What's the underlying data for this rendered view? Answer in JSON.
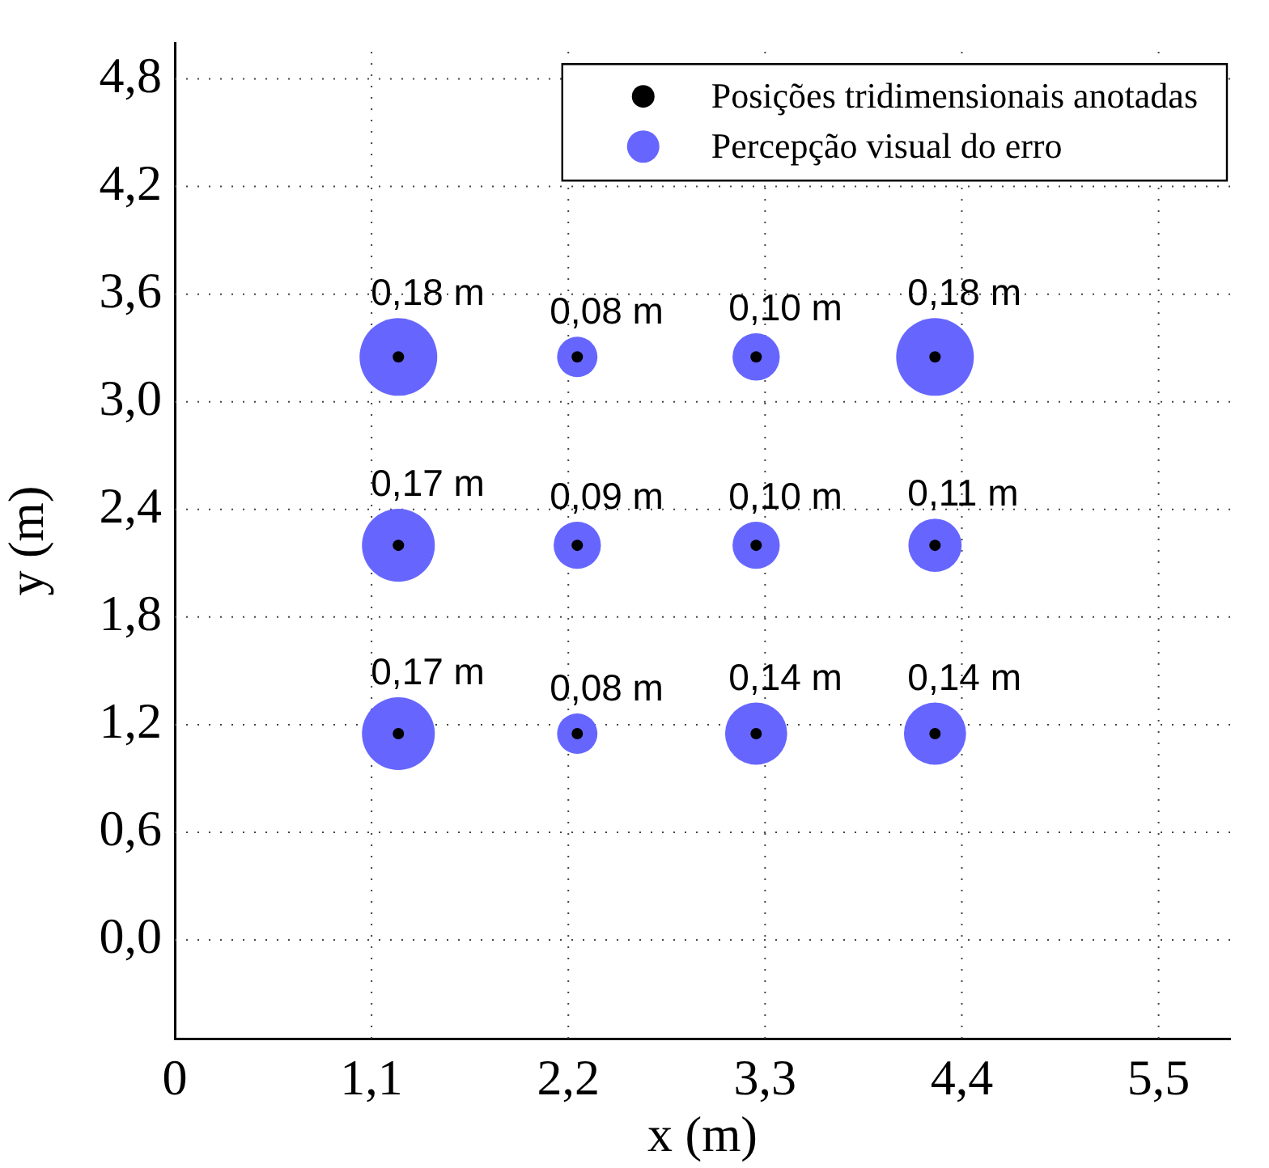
{
  "chart_data": {
    "type": "scatter",
    "xlabel": "x (m)",
    "ylabel": "y (m)",
    "xlim": [
      0,
      5.9
    ],
    "ylim": [
      -0.55,
      5.0
    ],
    "xticks": [
      0,
      {
        "value": 1.1,
        "label": "1,1"
      },
      {
        "value": 2.2,
        "label": "2,2"
      },
      {
        "value": 3.3,
        "label": "3,3"
      },
      {
        "value": 4.4,
        "label": "4,4"
      },
      {
        "value": 5.5,
        "label": "5,5"
      }
    ],
    "yticks": [
      {
        "value": 0,
        "label": "0,0"
      },
      {
        "value": 0.6,
        "label": "0,6"
      },
      {
        "value": 1.2,
        "label": "1,2"
      },
      {
        "value": 1.8,
        "label": "1,8"
      },
      {
        "value": 2.4,
        "label": "2,4"
      },
      {
        "value": 3.0,
        "label": "3,0"
      },
      {
        "value": 3.6,
        "label": "3,6"
      },
      {
        "value": 4.2,
        "label": "4,2"
      },
      {
        "value": 4.8,
        "label": "4,8"
      }
    ],
    "grid": true,
    "legend": "top right",
    "marker": "circle",
    "series": [
      {
        "name": "Posições tridimensionais anotadas",
        "color": "#000000",
        "x": [
          1.25,
          2.25,
          3.25,
          4.25,
          1.25,
          2.25,
          3.25,
          4.25,
          1.25,
          2.25,
          3.25,
          4.25
        ],
        "values": [
          3.25,
          3.25,
          3.25,
          3.25,
          2.2,
          2.2,
          2.2,
          2.2,
          1.15,
          1.15,
          1.15,
          1.15
        ]
      },
      {
        "name": "Percepção visual do erro",
        "type": "bubble",
        "color": "#6666ff",
        "x": [
          1.25,
          2.25,
          3.25,
          4.25,
          1.25,
          2.25,
          3.25,
          4.25,
          1.25,
          2.25,
          3.25,
          4.25
        ],
        "values": [
          3.25,
          3.25,
          3.25,
          3.25,
          2.2,
          2.2,
          2.2,
          2.2,
          1.15,
          1.15,
          1.15,
          1.15
        ],
        "sizes": [
          1,
          0.27,
          0.37,
          1,
          0.88,
          0.37,
          0.37,
          0.47,
          0.88,
          0.27,
          0.64,
          0.64
        ]
      }
    ],
    "annotations": [
      {
        "text": "0,18 m",
        "x": 1.25,
        "y": 3.25
      },
      {
        "text": "0,08 m",
        "x": 2.25,
        "y": 3.25
      },
      {
        "text": "0,10 m",
        "x": 3.25,
        "y": 3.25
      },
      {
        "text": "0,18 m",
        "x": 4.25,
        "y": 3.25
      },
      {
        "text": "0,17 m",
        "x": 1.25,
        "y": 2.2
      },
      {
        "text": "0,09 m",
        "x": 2.25,
        "y": 2.2
      },
      {
        "text": "0,10 m",
        "x": 3.25,
        "y": 2.2
      },
      {
        "text": "0,11 m",
        "x": 4.25,
        "y": 2.2
      },
      {
        "text": "0,17 m",
        "x": 1.25,
        "y": 1.15
      },
      {
        "text": "0,08 m",
        "x": 2.25,
        "y": 1.15
      },
      {
        "text": "0,14 m",
        "x": 3.25,
        "y": 1.15
      },
      {
        "text": "0,14 m",
        "x": 4.25,
        "y": 1.15
      }
    ]
  }
}
